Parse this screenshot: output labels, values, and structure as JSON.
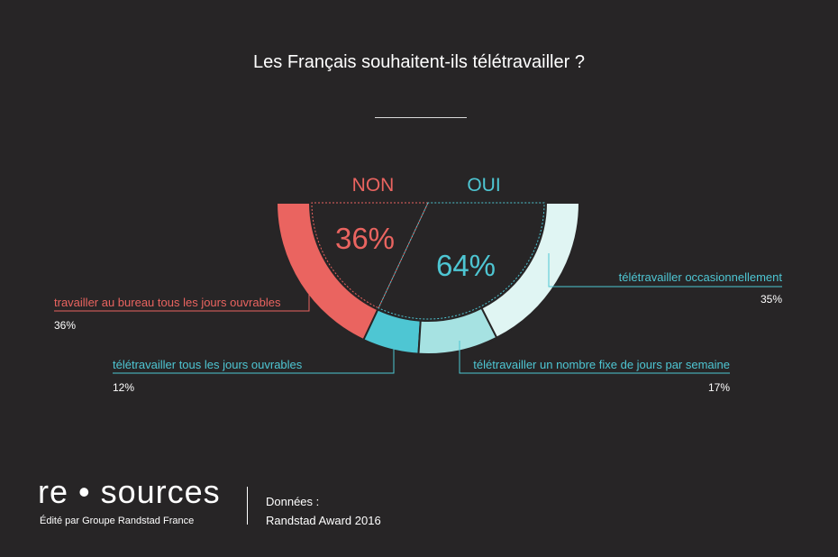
{
  "chart_data": {
    "type": "pie",
    "title": "Les Français souhaitent-ils télétravailler ?",
    "groups": [
      {
        "name": "NON",
        "value": 36,
        "label": "36%",
        "color": "#ea6460"
      },
      {
        "name": "OUI",
        "value": 64,
        "label": "64%",
        "color": "#4ec6d3"
      }
    ],
    "segments": [
      {
        "name": "travailler au bureau tous les jours ouvrables",
        "value": 36,
        "label": "36%",
        "group": "NON",
        "color": "#ea6460"
      },
      {
        "name": "télétravailler tous les jours ouvrables",
        "value": 12,
        "label": "12%",
        "group": "OUI",
        "color": "#4ec6d3"
      },
      {
        "name": "télétravailler un nombre fixe de jours par semaine",
        "value": 17,
        "label": "17%",
        "group": "OUI",
        "color": "#a6e2e2"
      },
      {
        "name": "télétravailler occasionnellement",
        "value": 35,
        "label": "35%",
        "group": "OUI",
        "color": "#e0f5f3"
      }
    ]
  },
  "footer": {
    "logo": "re • sources",
    "publisher": "Édité par Groupe Randstad France",
    "source_label": "Données :",
    "source": "Randstad Award 2016"
  }
}
